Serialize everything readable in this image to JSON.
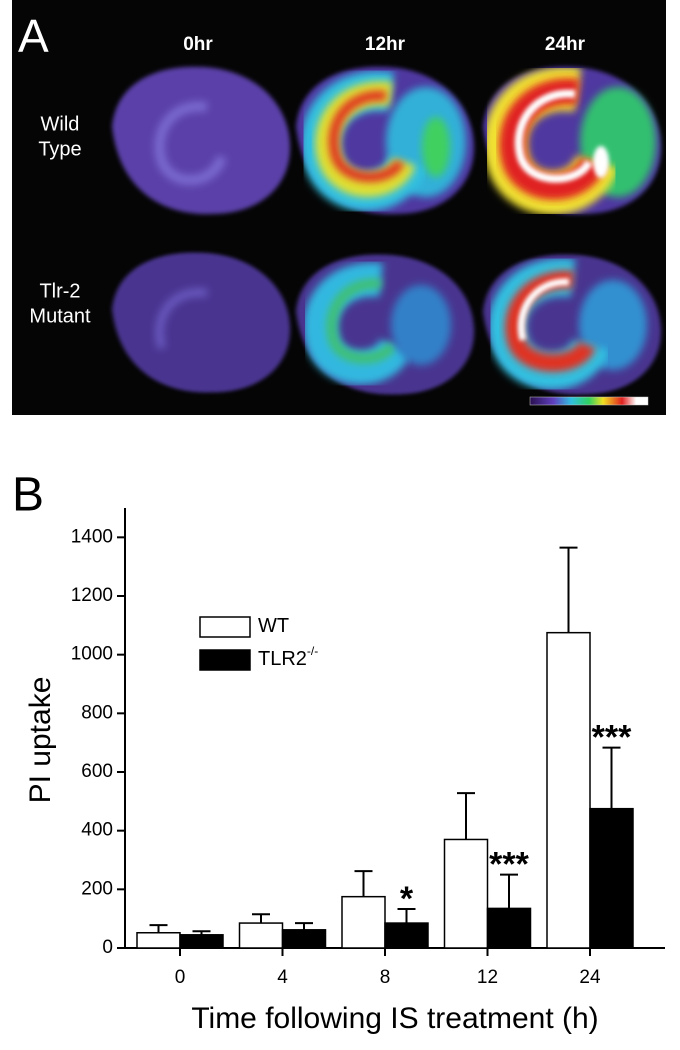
{
  "panel_a": {
    "label": "A",
    "columns": [
      "0hr",
      "12hr",
      "24hr"
    ],
    "rows": [
      [
        "Wild",
        "Type"
      ],
      [
        "Tlr-2",
        "Mutant"
      ]
    ]
  },
  "chart_data": {
    "type": "bar",
    "panel_label": "B",
    "ylabel": "PI uptake",
    "xlabel": "Time following IS treatment (h)",
    "categories": [
      "0",
      "4",
      "8",
      "12",
      "24"
    ],
    "series": [
      {
        "name": "WT",
        "color": "#ffffff",
        "values": [
          52,
          85,
          175,
          370,
          1075
        ],
        "errors": [
          26,
          30,
          87,
          158,
          290
        ]
      },
      {
        "name": "TLR2",
        "superscript": "-/-",
        "color": "#000000",
        "values": [
          45,
          62,
          85,
          135,
          475
        ],
        "errors": [
          12,
          23,
          48,
          115,
          208
        ]
      }
    ],
    "significance": [
      null,
      null,
      "*",
      "***",
      "***"
    ],
    "ylim": [
      0,
      1500
    ],
    "yticks": [
      0,
      200,
      400,
      600,
      800,
      1000,
      1200,
      1400
    ]
  }
}
